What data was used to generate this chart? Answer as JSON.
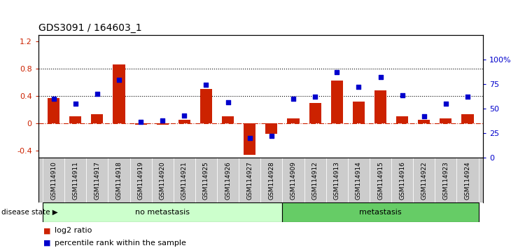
{
  "title": "GDS3091 / 164603_1",
  "samples": [
    "GSM114910",
    "GSM114911",
    "GSM114917",
    "GSM114918",
    "GSM114919",
    "GSM114920",
    "GSM114921",
    "GSM114925",
    "GSM114926",
    "GSM114927",
    "GSM114928",
    "GSM114909",
    "GSM114912",
    "GSM114913",
    "GSM114914",
    "GSM114915",
    "GSM114916",
    "GSM114922",
    "GSM114923",
    "GSM114924"
  ],
  "log2_ratio": [
    0.37,
    0.1,
    0.13,
    0.86,
    -0.02,
    -0.02,
    0.05,
    0.5,
    0.1,
    -0.46,
    -0.15,
    0.07,
    0.3,
    0.63,
    0.32,
    0.48,
    0.1,
    0.05,
    0.07,
    0.13
  ],
  "percentile_rank": [
    0.6,
    0.55,
    0.65,
    0.79,
    0.36,
    0.38,
    0.43,
    0.74,
    0.56,
    0.2,
    0.22,
    0.6,
    0.62,
    0.87,
    0.72,
    0.82,
    0.63,
    0.42,
    0.55,
    0.62
  ],
  "no_metastasis_count": 11,
  "metastasis_count": 9,
  "bar_color": "#cc2200",
  "dot_color": "#0000cc",
  "background_color": "#ffffff",
  "plot_bg_color": "#ffffff",
  "left_ylim": [
    -0.5,
    1.3
  ],
  "right_ylim": [
    0.0,
    1.25
  ],
  "left_yticks": [
    -0.4,
    0.0,
    0.4,
    0.8,
    1.2
  ],
  "left_yticklabels": [
    "-0.4",
    "0",
    "0.4",
    "0.8",
    "1.2"
  ],
  "right_yticks": [
    0.0,
    0.25,
    0.5,
    0.75,
    1.0
  ],
  "right_yticklabels": [
    "0",
    "25",
    "50",
    "75",
    "100%"
  ],
  "hline_y": [
    0.4,
    0.8
  ],
  "zero_line_y": 0.0,
  "no_metastasis_color": "#ccffcc",
  "metastasis_color": "#66cc66",
  "label_log2": "log2 ratio",
  "label_pct": "percentile rank within the sample",
  "tick_area_color": "#cccccc",
  "disease_state_label": "disease state",
  "cell_border_color": "#999999"
}
